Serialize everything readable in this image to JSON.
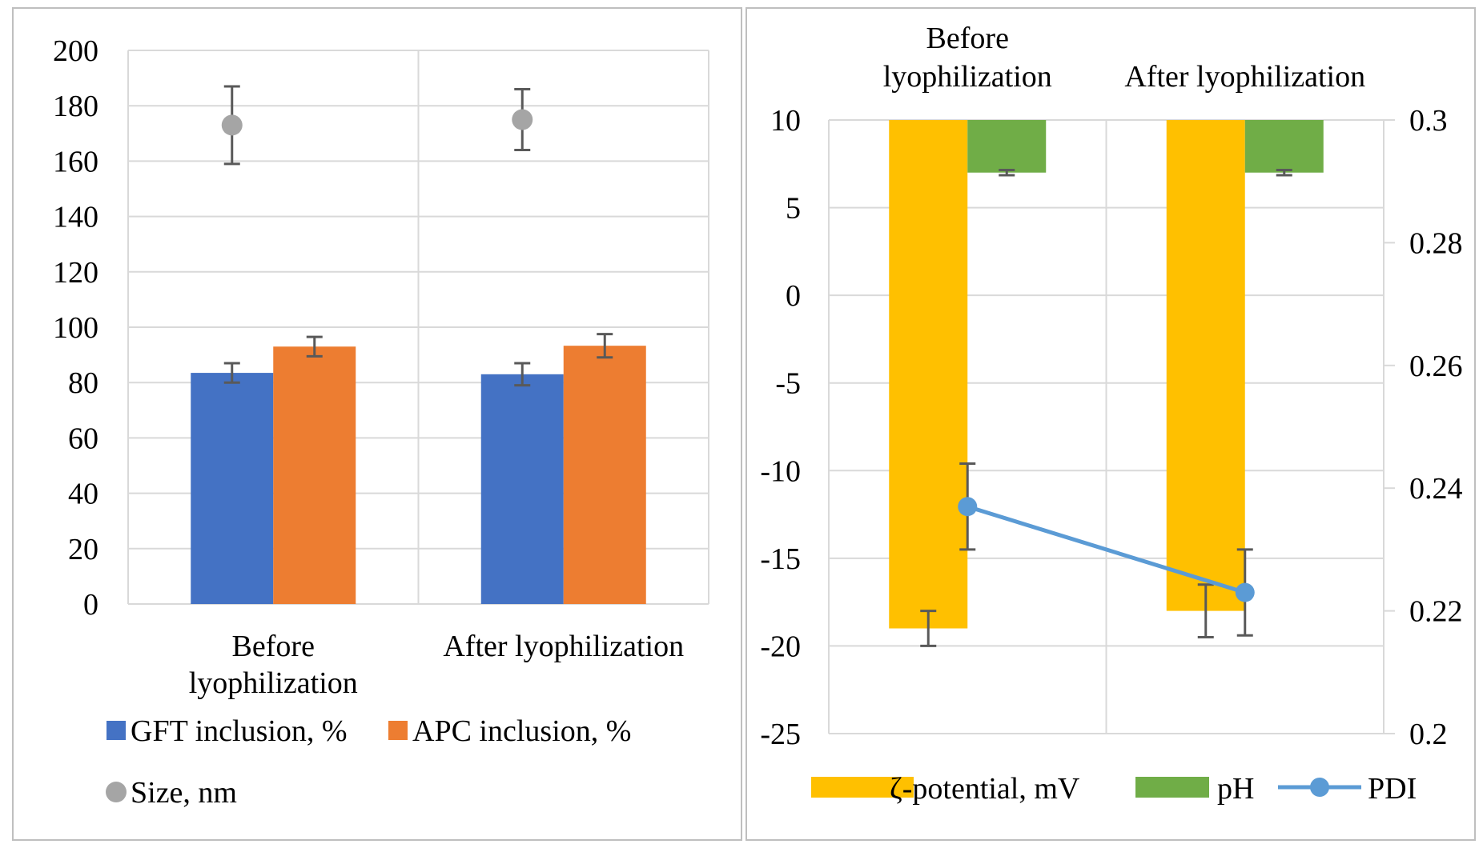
{
  "colors": {
    "gft": "#4472C4",
    "apc": "#ED7D31",
    "size": "#A5A5A5",
    "zeta": "#FFC000",
    "ph": "#70AD47",
    "pdi": "#5B9BD5",
    "grid": "#D9D9D9",
    "error": "#595959"
  },
  "chart_data": [
    {
      "type": "bar",
      "categories": [
        "Before\nlyophilization",
        "After lyophilization"
      ],
      "series": [
        {
          "name": "GFT inclusion, %",
          "kind": "bar",
          "values": [
            83.5,
            83
          ],
          "errors": [
            3.5,
            4
          ]
        },
        {
          "name": "APC inclusion, %",
          "kind": "bar",
          "values": [
            93,
            93.3
          ],
          "errors": [
            3.5,
            4.2
          ]
        },
        {
          "name": "Size, nm",
          "kind": "scatter",
          "values": [
            173,
            175
          ],
          "errors": [
            14,
            11
          ]
        }
      ],
      "ylim": [
        0,
        200
      ],
      "yticks": [
        "200",
        "180",
        "160",
        "140",
        "120",
        "100",
        "80",
        "60",
        "40",
        "20",
        "0"
      ],
      "grid": true,
      "legend": "bottom"
    },
    {
      "type": "bar",
      "categories": [
        "Before\nlyophilization",
        "After lyophilization"
      ],
      "series": [
        {
          "name": "ζ-potential, mV",
          "kind": "bar",
          "axis": "left",
          "values": [
            -19,
            -18
          ],
          "errors": [
            1,
            1.5
          ]
        },
        {
          "name": "pH",
          "kind": "bar",
          "axis": "left",
          "values": [
            7,
            7
          ],
          "errors": [
            0.15,
            0.15
          ]
        },
        {
          "name": "PDI",
          "kind": "line",
          "axis": "right",
          "values": [
            0.237,
            0.223
          ],
          "errors": [
            0.007,
            0.007
          ]
        }
      ],
      "ylim_left": [
        -25,
        10
      ],
      "ylim_right": [
        0.2,
        0.3
      ],
      "yticks_left": [
        "10",
        "5",
        "0",
        "-5",
        "-10",
        "-15",
        "-20",
        "-25"
      ],
      "yticks_right": [
        "0.3",
        "0.28",
        "0.26",
        "0.24",
        "0.22",
        "0.2"
      ],
      "category_axis": "top",
      "grid": true,
      "legend": "bottom"
    }
  ]
}
